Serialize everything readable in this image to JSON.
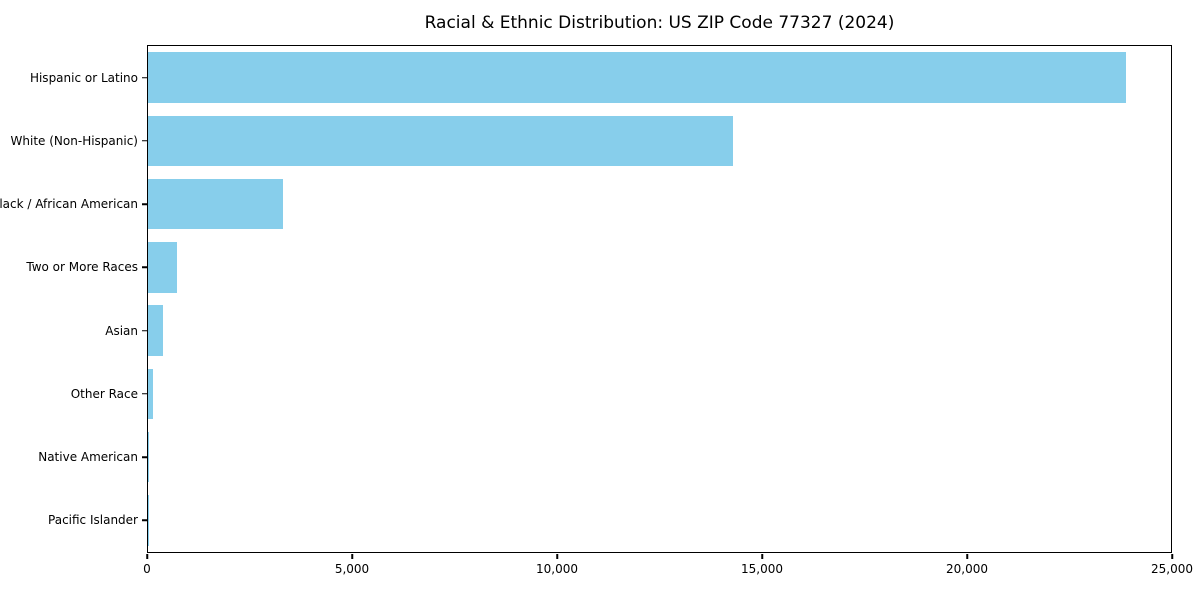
{
  "title": "Racial & Ethnic Distribution: US ZIP Code 77327 (2024)",
  "chart_data": {
    "type": "bar",
    "orientation": "horizontal",
    "title": "Racial & Ethnic Distribution: US ZIP Code 77327 (2024)",
    "categories": [
      "Hispanic or Latino",
      "White (Non-Hispanic)",
      "Black / African American",
      "Two or More Races",
      "Asian",
      "Other Race",
      "Native American",
      "Pacific Islander"
    ],
    "values": [
      23900,
      14300,
      3300,
      700,
      370,
      110,
      20,
      10
    ],
    "xlabel": "",
    "ylabel": "",
    "xlim": [
      0,
      25000
    ],
    "x_ticks": [
      0,
      5000,
      10000,
      15000,
      20000,
      25000
    ],
    "x_tick_labels": [
      "0",
      "5,000",
      "10,000",
      "15,000",
      "20,000",
      "25,000"
    ],
    "bar_color": "#87CEEB",
    "axis_color": "#000000",
    "background_color": "#ffffff",
    "grid": false,
    "legend": "none"
  }
}
